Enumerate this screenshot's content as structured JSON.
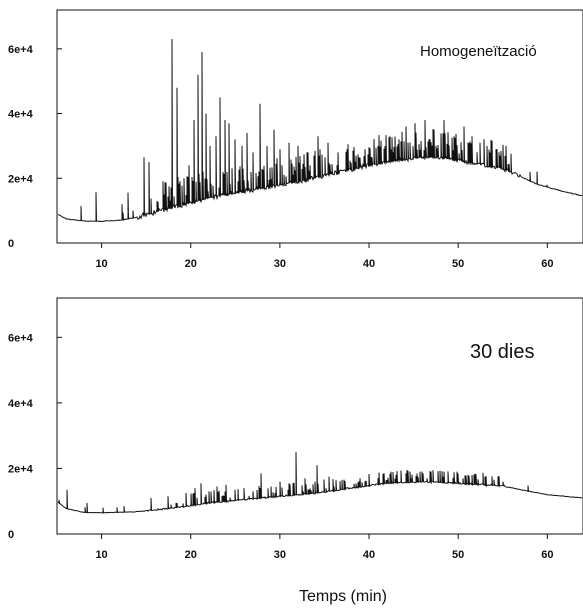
{
  "chart_data": [
    {
      "type": "line",
      "title": "",
      "annotation": "Homogeneïtzació",
      "xlabel": "",
      "ylabel": "",
      "xlim": [
        5,
        64
      ],
      "ylim": [
        0,
        72000
      ],
      "xticks": [
        10,
        20,
        30,
        40,
        50,
        60
      ],
      "xtick_labels": [
        "10",
        "20",
        "30",
        "40",
        "50",
        "60"
      ],
      "yticks": [
        0,
        20000,
        40000,
        60000
      ],
      "ytick_labels": [
        "0",
        "2e+4",
        "4e+4",
        "6e+4"
      ],
      "grid": false,
      "legend": "none",
      "color": "#111111",
      "baseline": [
        [
          5,
          9000
        ],
        [
          6,
          7500
        ],
        [
          8,
          6800
        ],
        [
          10,
          6700
        ],
        [
          12,
          7000
        ],
        [
          14,
          8000
        ],
        [
          16,
          9500
        ],
        [
          18,
          11000
        ],
        [
          20,
          12500
        ],
        [
          22,
          14000
        ],
        [
          25,
          15500
        ],
        [
          28,
          17000
        ],
        [
          30,
          18000
        ],
        [
          33,
          19500
        ],
        [
          36,
          21500
        ],
        [
          40,
          24000
        ],
        [
          43,
          25500
        ],
        [
          46,
          26500
        ],
        [
          48,
          26500
        ],
        [
          50,
          25500
        ],
        [
          53,
          24000
        ],
        [
          55,
          23000
        ],
        [
          57,
          20500
        ],
        [
          59,
          18000
        ],
        [
          61,
          16500
        ],
        [
          64,
          14500
        ]
      ],
      "peaks": [
        [
          12.3,
          12000
        ],
        [
          13.5,
          10000
        ],
        [
          14.8,
          26500
        ],
        [
          15.3,
          25000
        ],
        [
          16.2,
          13000
        ],
        [
          17.0,
          15000
        ],
        [
          17.9,
          63000
        ],
        [
          18.5,
          48000
        ],
        [
          19.2,
          20000
        ],
        [
          19.8,
          24000
        ],
        [
          20.4,
          38000
        ],
        [
          20.8,
          52000
        ],
        [
          21.3,
          59000
        ],
        [
          21.7,
          40000
        ],
        [
          22.2,
          30000
        ],
        [
          22.8,
          33000
        ],
        [
          23.3,
          45000
        ],
        [
          23.8,
          38000
        ],
        [
          24.3,
          37000
        ],
        [
          25.0,
          32000
        ],
        [
          25.7,
          30000
        ],
        [
          26.3,
          34000
        ],
        [
          27.0,
          28000
        ],
        [
          27.8,
          43000
        ],
        [
          28.5,
          30000
        ],
        [
          29.3,
          35000
        ],
        [
          30.0,
          29000
        ],
        [
          31.0,
          31000
        ],
        [
          32.0,
          30000
        ],
        [
          33.0,
          28000
        ],
        [
          34.3,
          33000
        ],
        [
          35.4,
          31000
        ],
        [
          36.5,
          28000
        ],
        [
          37.5,
          29000
        ],
        [
          38.5,
          27000
        ],
        [
          39.5,
          29000
        ],
        [
          41.0,
          30000
        ],
        [
          42.3,
          33000
        ],
        [
          43.4,
          32000
        ],
        [
          44.2,
          36000
        ],
        [
          45.2,
          37000
        ],
        [
          46.3,
          38000
        ],
        [
          47.3,
          35000
        ],
        [
          48.4,
          38000
        ],
        [
          49.5,
          33000
        ],
        [
          50.6,
          36000
        ],
        [
          51.5,
          33000
        ],
        [
          52.4,
          31000
        ],
        [
          53.2,
          30000
        ],
        [
          54.3,
          29000
        ],
        [
          55.4,
          30000
        ],
        [
          58.0,
          22000
        ],
        [
          60.0,
          18000
        ]
      ]
    },
    {
      "type": "line",
      "title": "",
      "annotation": "30 dies",
      "xlabel": "Temps (min)",
      "ylabel": "",
      "xlim": [
        5,
        64
      ],
      "ylim": [
        0,
        72000
      ],
      "xticks": [
        10,
        20,
        30,
        40,
        50,
        60
      ],
      "xtick_labels": [
        "10",
        "20",
        "30",
        "40",
        "50",
        "60"
      ],
      "yticks": [
        0,
        20000,
        40000,
        60000
      ],
      "ytick_labels": [
        "0",
        "2e+4",
        "4e+4",
        "6e+4"
      ],
      "grid": false,
      "legend": "none",
      "color": "#111111",
      "baseline": [
        [
          5,
          10000
        ],
        [
          6,
          7800
        ],
        [
          8,
          6600
        ],
        [
          10,
          6500
        ],
        [
          14,
          6800
        ],
        [
          18,
          8000
        ],
        [
          22,
          9500
        ],
        [
          26,
          10500
        ],
        [
          30,
          11500
        ],
        [
          34,
          12500
        ],
        [
          38,
          14000
        ],
        [
          42,
          15500
        ],
        [
          46,
          16000
        ],
        [
          50,
          15500
        ],
        [
          53,
          15000
        ],
        [
          55,
          14800
        ],
        [
          57,
          13500
        ],
        [
          60,
          12000
        ],
        [
          64,
          11000
        ]
      ],
      "peaks": [
        [
          6.1,
          13500
        ],
        [
          12.5,
          8500
        ],
        [
          15.5,
          11000
        ],
        [
          17.5,
          11500
        ],
        [
          19.5,
          12500
        ],
        [
          20.5,
          14000
        ],
        [
          21.2,
          15500
        ],
        [
          22.0,
          13000
        ],
        [
          23.0,
          14500
        ],
        [
          24.0,
          15000
        ],
        [
          25.0,
          13500
        ],
        [
          26.0,
          14000
        ],
        [
          27.0,
          13000
        ],
        [
          27.9,
          18500
        ],
        [
          29.0,
          14500
        ],
        [
          30.0,
          16000
        ],
        [
          31.0,
          15500
        ],
        [
          31.8,
          25000
        ],
        [
          32.8,
          17000
        ],
        [
          34.2,
          21000
        ],
        [
          35.5,
          17500
        ],
        [
          37.0,
          16500
        ],
        [
          39.0,
          17000
        ],
        [
          41.0,
          17000
        ],
        [
          43.0,
          18000
        ],
        [
          44.6,
          19000
        ],
        [
          46.0,
          18500
        ],
        [
          47.2,
          19500
        ],
        [
          48.4,
          19000
        ],
        [
          50.0,
          18500
        ],
        [
          51.5,
          18000
        ],
        [
          53.0,
          17500
        ],
        [
          55.0,
          16000
        ]
      ]
    }
  ]
}
